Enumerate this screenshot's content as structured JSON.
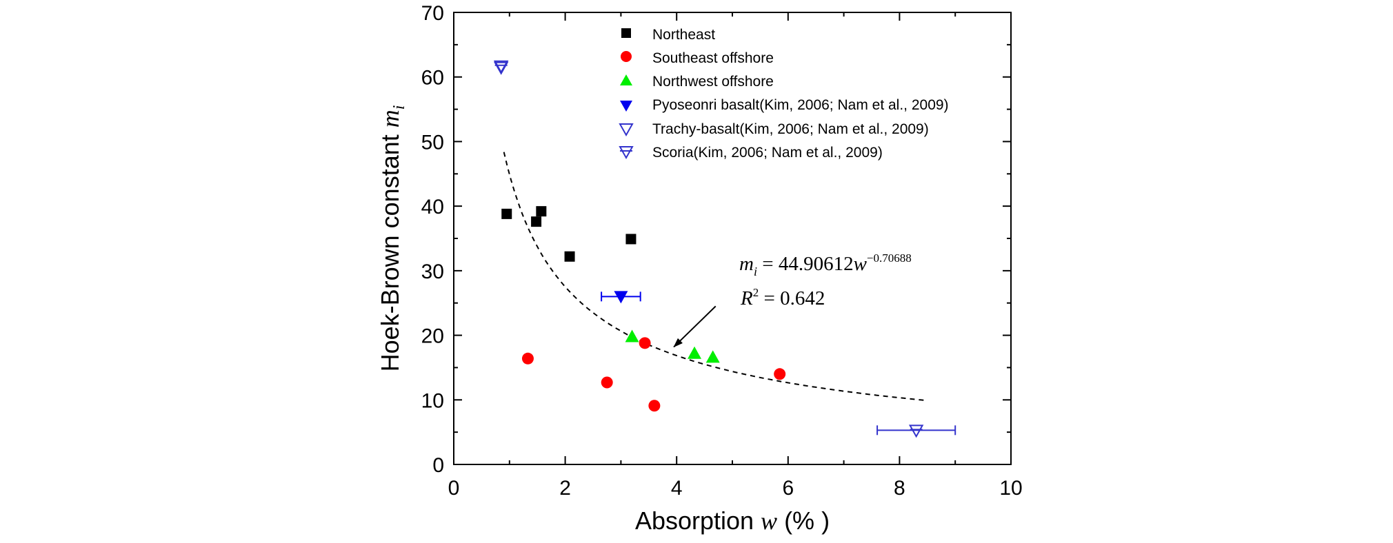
{
  "chart_data": {
    "type": "scatter",
    "title": "",
    "xlabel": {
      "main": "Absorption ",
      "var": "w",
      "unit": " (% )"
    },
    "ylabel": {
      "main": "Hoek-Brown constant ",
      "var": "m",
      "sub": "i"
    },
    "xlim": [
      0,
      10
    ],
    "ylim": [
      0,
      70
    ],
    "x_ticks": [
      "0",
      "2",
      "4",
      "6",
      "8",
      "10"
    ],
    "y_ticks": [
      "0",
      "10",
      "20",
      "30",
      "40",
      "50",
      "60",
      "70"
    ],
    "grid": false,
    "legend_position": "top",
    "series": [
      {
        "name": "Northeast",
        "marker": "square",
        "color": "#000000",
        "points": [
          {
            "x": 0.95,
            "y": 38.8
          },
          {
            "x": 1.48,
            "y": 37.6
          },
          {
            "x": 1.57,
            "y": 39.2
          },
          {
            "x": 2.08,
            "y": 32.2
          },
          {
            "x": 3.18,
            "y": 34.9
          }
        ]
      },
      {
        "name": "Southeast offshore",
        "marker": "circle",
        "color": "#ff0000",
        "points": [
          {
            "x": 1.33,
            "y": 16.4
          },
          {
            "x": 2.75,
            "y": 12.7
          },
          {
            "x": 3.43,
            "y": 18.8
          },
          {
            "x": 3.6,
            "y": 9.1
          },
          {
            "x": 5.85,
            "y": 14.0
          }
        ]
      },
      {
        "name": "Northwest offshore",
        "marker": "triangle-up",
        "color": "#00ee00",
        "points": [
          {
            "x": 3.2,
            "y": 19.8
          },
          {
            "x": 4.32,
            "y": 17.2
          },
          {
            "x": 4.65,
            "y": 16.6
          }
        ]
      },
      {
        "name": "Pyoseonri basalt(Kim, 2006; Nam et al., 2009)",
        "marker": "triangle-down-filled",
        "color": "#0000ee",
        "points": [
          {
            "x": 3.0,
            "y": 26.0,
            "xerr_low": 2.65,
            "xerr_high": 3.35
          }
        ]
      },
      {
        "name": "Trachy-basalt(Kim, 2006; Nam et al., 2009)",
        "marker": "triangle-down-open",
        "color": "#3333cc",
        "points": [
          {
            "x": 0.85,
            "y": 61.5
          }
        ]
      },
      {
        "name": "Scoria(Kim, 2006; Nam et al., 2009)",
        "marker": "triangle-down-open-bar",
        "color": "#3333cc",
        "points": [
          {
            "x": 0.85,
            "y": 61.7
          },
          {
            "x": 8.3,
            "y": 5.3,
            "xerr_low": 7.6,
            "xerr_high": 9.0
          }
        ]
      }
    ],
    "fit": {
      "coefficient": 44.90612,
      "exponent": -0.70688,
      "x_range": [
        0.9,
        8.45
      ],
      "style": "dashed",
      "equation": {
        "lhs_var": "m",
        "lhs_sub": "i",
        "rhs": " = 44.90612",
        "rhs_var": "w",
        "exp": "−0.70688"
      },
      "r2": {
        "var": "R",
        "sup": "2",
        "value": " = 0.642"
      }
    },
    "annotation_arrow": {
      "from": {
        "x": 4.7,
        "y": 24.5
      },
      "to": {
        "x": 3.95,
        "y": 18.2
      }
    }
  }
}
